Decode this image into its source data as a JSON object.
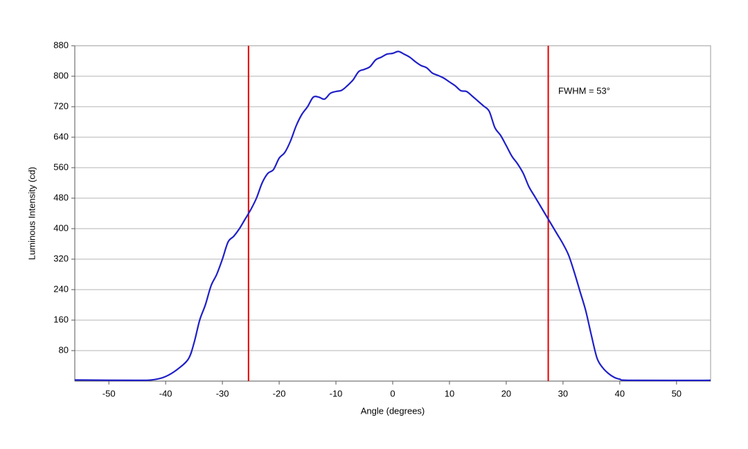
{
  "chart_data": {
    "type": "line",
    "x_label": "Angle (degrees)",
    "y_label": "Luminous Intensity (cd)",
    "annotation": "FWHM = 53°",
    "xlim": [
      -56,
      56
    ],
    "ylim": [
      0,
      880
    ],
    "xticks": [
      -50,
      -40,
      -30,
      -20,
      -10,
      0,
      10,
      20,
      30,
      40,
      50
    ],
    "yticks": [
      80,
      160,
      240,
      320,
      400,
      480,
      560,
      640,
      720,
      800,
      880
    ],
    "grid": true,
    "vlines": [
      -25.4,
      27.4
    ],
    "vline_color": "#e00000",
    "x": [
      -56,
      -45,
      -42,
      -40,
      -38,
      -36,
      -35,
      -34,
      -33,
      -32,
      -31,
      -30,
      -29,
      -28,
      -27,
      -26,
      -25,
      -24,
      -23,
      -22,
      -21,
      -20,
      -19,
      -18,
      -17,
      -16,
      -15,
      -14,
      -13,
      -12,
      -11,
      -10,
      -9,
      -8,
      -7,
      -6,
      -5,
      -4,
      -3,
      -2,
      -1,
      0,
      1,
      2,
      3,
      4,
      5,
      6,
      7,
      8,
      9,
      10,
      11,
      12,
      13,
      14,
      15,
      16,
      17,
      18,
      19,
      20,
      21,
      22,
      23,
      24,
      25,
      26,
      27,
      28,
      29,
      30,
      31,
      32,
      33,
      34,
      35,
      36,
      37,
      38,
      39,
      40,
      42,
      56
    ],
    "series": [
      {
        "color": "#1f1fc8",
        "values": [
          3,
          2,
          4,
          12,
          30,
          58,
          100,
          160,
          200,
          250,
          280,
          320,
          365,
          380,
          400,
          425,
          450,
          480,
          520,
          545,
          555,
          585,
          600,
          630,
          670,
          700,
          720,
          745,
          745,
          740,
          755,
          760,
          763,
          775,
          790,
          812,
          818,
          825,
          843,
          850,
          858,
          860,
          865,
          858,
          850,
          838,
          828,
          822,
          808,
          802,
          795,
          785,
          775,
          762,
          760,
          748,
          735,
          722,
          708,
          665,
          645,
          618,
          590,
          570,
          545,
          510,
          485,
          460,
          435,
          410,
          385,
          360,
          330,
          285,
          235,
          185,
          120,
          60,
          35,
          20,
          10,
          5,
          2,
          2
        ]
      }
    ]
  }
}
